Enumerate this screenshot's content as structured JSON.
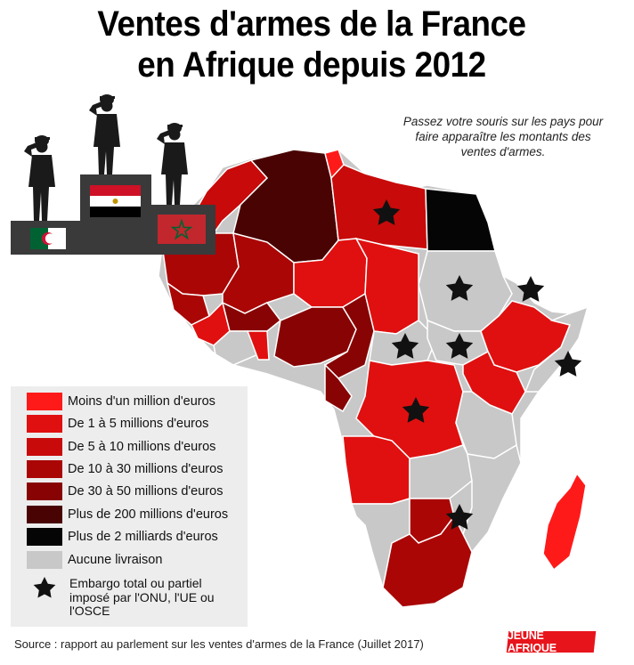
{
  "title": {
    "line1": "Ventes d'armes de la France",
    "line2": "en Afrique depuis 2012"
  },
  "hint": "Passez votre souris sur les pays pour faire apparaître les montants des ventes d'armes.",
  "podium": {
    "first": {
      "flag": "egypt-flag",
      "colors": [
        "#ce1126",
        "#ffffff",
        "#000000"
      ]
    },
    "second": {
      "flag": "algeria-flag",
      "colors": [
        "#006233",
        "#ffffff",
        "#d21034"
      ]
    },
    "third": {
      "flag": "morocco-flag",
      "colors": [
        "#c1272d",
        "#006233"
      ]
    }
  },
  "legend": [
    {
      "label": "Moins d'un million d'euros",
      "color": "#ff1a1a"
    },
    {
      "label": "De 1 à 5 millions d'euros",
      "color": "#e01010"
    },
    {
      "label": "De 5 à 10 millions d'euros",
      "color": "#c80a0a"
    },
    {
      "label": "De 10 à 30 millions d'euros",
      "color": "#aa0606"
    },
    {
      "label": "De 30 à 50 millions d'euros",
      "color": "#880404"
    },
    {
      "label": "Plus de 200 millions d'euros",
      "color": "#4a0303"
    },
    {
      "label": "Plus de 2 milliards d'euros",
      "color": "#050505"
    },
    {
      "label": "Aucune livraison",
      "color": "#c8c8c8"
    }
  ],
  "embargo_label": "Embargo total ou partiel imposé par l'ONU, l'UE ou l'OSCE",
  "source": "Source : rapport au parlement sur les ventes d'armes de la France (Juillet 2017)",
  "logo": "JEUNE AFRIQUE"
}
